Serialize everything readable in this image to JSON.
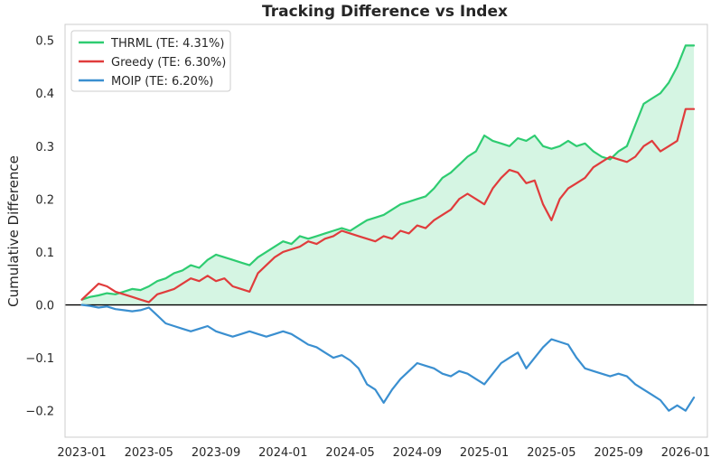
{
  "chart_data": {
    "type": "line",
    "title": "Tracking Difference vs Index",
    "xlabel": "",
    "ylabel": "Cumulative Difference",
    "x_ticks": [
      "2023-01",
      "2023-05",
      "2023-09",
      "2024-01",
      "2024-05",
      "2024-09",
      "2025-01",
      "2025-05",
      "2025-09",
      "2026-01"
    ],
    "x_tick_months": [
      0,
      4,
      8,
      12,
      16,
      20,
      24,
      28,
      32,
      36
    ],
    "xlim": [
      -1.0,
      37.3
    ],
    "y_ticks": [
      -0.2,
      -0.1,
      0.0,
      0.1,
      0.2,
      0.3,
      0.4,
      0.5
    ],
    "y_tick_labels": [
      "−0.2",
      "−0.1",
      "0.0",
      "0.1",
      "0.2",
      "0.3",
      "0.4",
      "0.5"
    ],
    "ylim": [
      -0.25,
      0.53
    ],
    "grid": false,
    "zero_line": true,
    "legend_position": "top-left",
    "x": [
      0,
      0.5,
      1,
      1.5,
      2,
      2.5,
      3,
      3.5,
      4,
      4.5,
      5,
      5.5,
      6,
      6.5,
      7,
      7.5,
      8,
      8.5,
      9,
      9.5,
      10,
      10.5,
      11,
      11.5,
      12,
      12.5,
      13,
      13.5,
      14,
      14.5,
      15,
      15.5,
      16,
      16.5,
      17,
      17.5,
      18,
      18.5,
      19,
      19.5,
      20,
      20.5,
      21,
      21.5,
      22,
      22.5,
      23,
      23.5,
      24,
      24.5,
      25,
      25.5,
      26,
      26.5,
      27,
      27.5,
      28,
      28.5,
      29,
      29.5,
      30,
      30.5,
      31,
      31.5,
      32,
      32.5,
      33,
      33.5,
      34,
      34.5,
      35,
      35.5,
      36,
      36.5
    ],
    "series": [
      {
        "name": "THRML",
        "legend_label": "THRML (TE: 4.31%)",
        "color": "#2ecc71",
        "fill_to_zero": true,
        "values": [
          0.01,
          0.015,
          0.018,
          0.022,
          0.02,
          0.025,
          0.03,
          0.028,
          0.035,
          0.045,
          0.05,
          0.06,
          0.065,
          0.075,
          0.07,
          0.085,
          0.095,
          0.09,
          0.085,
          0.08,
          0.075,
          0.09,
          0.1,
          0.11,
          0.12,
          0.115,
          0.13,
          0.125,
          0.13,
          0.135,
          0.14,
          0.145,
          0.14,
          0.15,
          0.16,
          0.165,
          0.17,
          0.18,
          0.19,
          0.195,
          0.2,
          0.205,
          0.22,
          0.24,
          0.25,
          0.265,
          0.28,
          0.29,
          0.32,
          0.31,
          0.305,
          0.3,
          0.315,
          0.31,
          0.32,
          0.3,
          0.295,
          0.3,
          0.31,
          0.3,
          0.305,
          0.29,
          0.28,
          0.275,
          0.29,
          0.3,
          0.34,
          0.38,
          0.39,
          0.4,
          0.42,
          0.45,
          0.49,
          0.49
        ]
      },
      {
        "name": "Greedy",
        "legend_label": "Greedy (TE: 6.30%)",
        "color": "#e03c3c",
        "fill_to_zero": false,
        "values": [
          0.01,
          0.025,
          0.04,
          0.035,
          0.025,
          0.02,
          0.015,
          0.01,
          0.005,
          0.02,
          0.025,
          0.03,
          0.04,
          0.05,
          0.045,
          0.055,
          0.045,
          0.05,
          0.035,
          0.03,
          0.025,
          0.06,
          0.075,
          0.09,
          0.1,
          0.105,
          0.11,
          0.12,
          0.115,
          0.125,
          0.13,
          0.14,
          0.135,
          0.13,
          0.125,
          0.12,
          0.13,
          0.125,
          0.14,
          0.135,
          0.15,
          0.145,
          0.16,
          0.17,
          0.18,
          0.2,
          0.21,
          0.2,
          0.19,
          0.22,
          0.24,
          0.255,
          0.25,
          0.23,
          0.235,
          0.19,
          0.16,
          0.2,
          0.22,
          0.23,
          0.24,
          0.26,
          0.27,
          0.28,
          0.275,
          0.27,
          0.28,
          0.3,
          0.31,
          0.29,
          0.3,
          0.31,
          0.37,
          0.37
        ]
      },
      {
        "name": "MOIP",
        "legend_label": "MOIP (TE: 6.20%)",
        "color": "#3a8fd0",
        "fill_to_zero": false,
        "values": [
          0.0,
          -0.002,
          -0.005,
          -0.003,
          -0.008,
          -0.01,
          -0.012,
          -0.01,
          -0.005,
          -0.02,
          -0.035,
          -0.04,
          -0.045,
          -0.05,
          -0.045,
          -0.04,
          -0.05,
          -0.055,
          -0.06,
          -0.055,
          -0.05,
          -0.055,
          -0.06,
          -0.055,
          -0.05,
          -0.055,
          -0.065,
          -0.075,
          -0.08,
          -0.09,
          -0.1,
          -0.095,
          -0.105,
          -0.12,
          -0.15,
          -0.16,
          -0.185,
          -0.16,
          -0.14,
          -0.125,
          -0.11,
          -0.115,
          -0.12,
          -0.13,
          -0.135,
          -0.125,
          -0.13,
          -0.14,
          -0.15,
          -0.13,
          -0.11,
          -0.1,
          -0.09,
          -0.12,
          -0.1,
          -0.08,
          -0.065,
          -0.07,
          -0.075,
          -0.1,
          -0.12,
          -0.125,
          -0.13,
          -0.135,
          -0.13,
          -0.135,
          -0.15,
          -0.16,
          -0.17,
          -0.18,
          -0.2,
          -0.19,
          -0.2,
          -0.175
        ]
      }
    ]
  }
}
